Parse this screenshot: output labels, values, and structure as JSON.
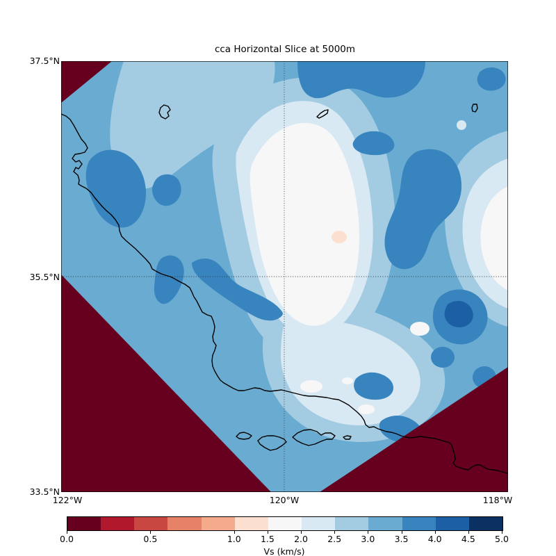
{
  "figure": {
    "title": "cca Horizontal Slice at 5000m",
    "background_color": "#ffffff"
  },
  "map": {
    "y_tick_labels": [
      "37.5°N",
      "35.5°N",
      "33.5°N"
    ],
    "x_tick_labels": [
      "122°W",
      "120°W",
      "118°W"
    ],
    "gridlines": {
      "horizontal_at": "35.5°N",
      "vertical_at": "120°W",
      "style": "dotted"
    }
  },
  "chart_data": {
    "type": "heatmap",
    "title": "cca Horizontal Slice at 5000m",
    "model": "cca",
    "slice_depth": "5000m",
    "xlabel": "",
    "ylabel": "",
    "x_range_deg_lon": [
      -122,
      -118
    ],
    "y_range_deg_lat": [
      33.5,
      37.5
    ],
    "x_ticks": [
      "122°W",
      "120°W",
      "118°W"
    ],
    "y_ticks": [
      "37.5°N",
      "35.5°N",
      "33.5°N"
    ],
    "grid": {
      "lon_line": "120°W",
      "lat_line": "35.5°N",
      "style": "dotted"
    },
    "colorbar": {
      "label": "Vs (km/s)",
      "orientation": "horizontal",
      "tick_labels": [
        "0.0",
        "0.5",
        "1.0",
        "1.5",
        "2.0",
        "2.5",
        "3.0",
        "3.5",
        "4.0",
        "4.5",
        "5.0"
      ],
      "tick_values": [
        0,
        0.5,
        1.0,
        1.5,
        2.0,
        2.5,
        3.0,
        3.5,
        4.0,
        4.5,
        5.0
      ],
      "boundaries": [
        0,
        0.2,
        0.4,
        0.6,
        0.8,
        1.0,
        1.5,
        2.0,
        2.5,
        3.0,
        3.5,
        4.0,
        4.5,
        5.0
      ],
      "colors": [
        "#67001f",
        "#b2182b",
        "#c84741",
        "#e58267",
        "#f5ab8b",
        "#fbe0cf",
        "#f7f7f7",
        "#d9e9f3",
        "#a3cce2",
        "#6aacd1",
        "#3884bf",
        "#1c5fa4",
        "#0b3162"
      ]
    },
    "field_features": [
      {
        "name": "outside-model-region",
        "vs_km_s": "0.0-0.2",
        "note": "dark red NW, SW and SE corner triangles outside rotated model domain"
      },
      {
        "name": "background-field",
        "vs_km_s": "3.0-3.5",
        "note": "dominant medium blue across domain"
      },
      {
        "name": "central-low-velocity-basin",
        "vs_km_s": "1.5-2.0",
        "note": "large near-white region, approx 119.6W 36.2N"
      },
      {
        "name": "basin-minimum-spot",
        "vs_km_s": "1.0-1.5",
        "note": "small peach spot, approx 119.5W 35.9N"
      },
      {
        "name": "eastern-light-zone",
        "vs_km_s": "1.5-2.5",
        "note": "pale zone at east edge, approx 118.1W 35.6N"
      },
      {
        "name": "southern-light-zone",
        "vs_km_s": "2.0-2.5",
        "note": "pale zone north of Channel Islands"
      },
      {
        "name": "high-velocity-patches",
        "vs_km_s": "3.5-4.0",
        "note": "scattered darker blue blobs"
      },
      {
        "name": "maximum-patch",
        "vs_km_s": "4.0-4.5",
        "note": "darkest blue blob, approx 118.5W 34.9N"
      }
    ],
    "overlays": [
      "California coastline",
      "Channel Islands",
      "small closed inland contours"
    ]
  }
}
